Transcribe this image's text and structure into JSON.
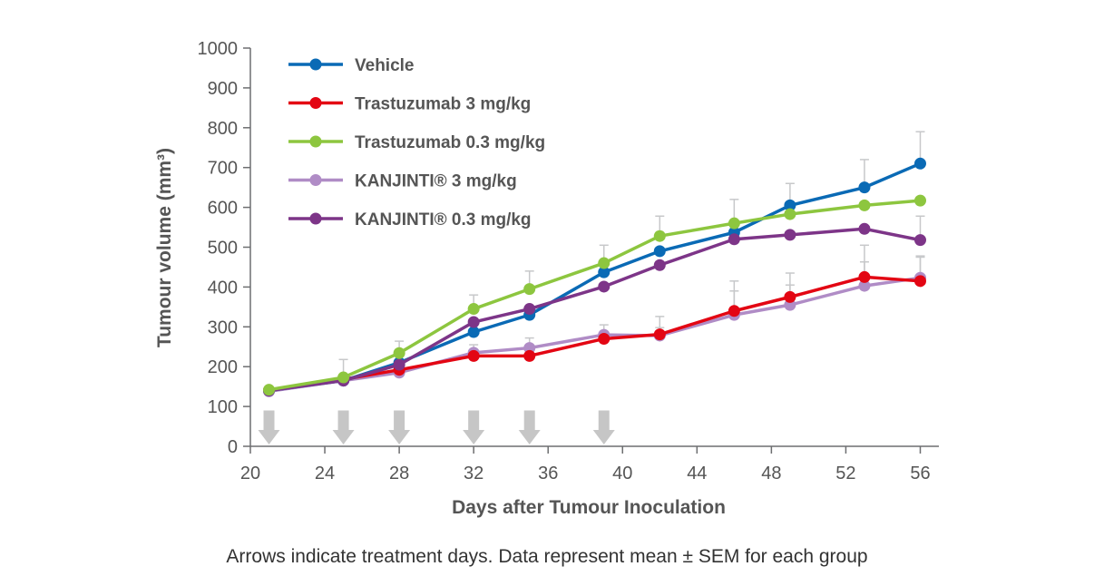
{
  "chart_data": {
    "type": "line",
    "xlabel": "Days after Tumour Inoculation",
    "ylabel": "Tumour volume (mm³)",
    "xlim": [
      20,
      57
    ],
    "ylim": [
      0,
      1000
    ],
    "xticks": [
      "20",
      "24",
      "28",
      "32",
      "36",
      "40",
      "44",
      "48",
      "52",
      "56"
    ],
    "yticks": [
      "0",
      "100",
      "200",
      "300",
      "400",
      "500",
      "600",
      "700",
      "800",
      "900",
      "1000"
    ],
    "caption": "Arrows indicate treatment days. Data represent mean ± SEM for each group",
    "treatment_days": [
      21,
      25,
      28,
      32,
      35,
      39
    ],
    "legend_position": "top-left",
    "series": [
      {
        "name": "KANJINTI® 3 mg/kg",
        "color": "#b08cc6",
        "x": [
          21,
          25,
          28,
          32,
          35,
          39,
          42,
          46,
          49,
          53,
          56
        ],
        "y": [
          138,
          165,
          185,
          235,
          247,
          280,
          278,
          330,
          355,
          403,
          423
        ],
        "err": [
          0,
          0,
          0,
          20,
          25,
          25,
          20,
          60,
          50,
          60,
          55
        ]
      },
      {
        "name": "Trastuzumab 3 mg/kg",
        "color": "#e30613",
        "x": [
          21,
          25,
          28,
          32,
          35,
          39,
          42,
          46,
          49,
          53,
          56
        ],
        "y": [
          141,
          168,
          192,
          227,
          227,
          270,
          281,
          340,
          375,
          425,
          415
        ],
        "err": [
          0,
          0,
          0,
          0,
          0,
          0,
          45,
          75,
          60,
          80,
          60
        ]
      },
      {
        "name": "Vehicle",
        "color": "#0a6ab5",
        "x": [
          21,
          25,
          28,
          32,
          35,
          39,
          42,
          46,
          49,
          53,
          56
        ],
        "y": [
          140,
          165,
          210,
          287,
          330,
          437,
          490,
          537,
          605,
          650,
          710
        ],
        "err": [
          0,
          0,
          0,
          0,
          0,
          0,
          0,
          0,
          55,
          70,
          80
        ]
      },
      {
        "name": "KANJINTI® 0.3 mg/kg",
        "color": "#7d3588",
        "x": [
          21,
          25,
          28,
          32,
          35,
          39,
          42,
          46,
          49,
          53,
          56
        ],
        "y": [
          140,
          165,
          205,
          312,
          345,
          401,
          455,
          520,
          531,
          546,
          518
        ],
        "err": [
          0,
          0,
          0,
          0,
          0,
          0,
          0,
          0,
          0,
          0,
          60
        ]
      },
      {
        "name": "Trastuzumab 0.3 mg/kg",
        "color": "#8dc63f",
        "x": [
          21,
          25,
          28,
          32,
          35,
          39,
          42,
          46,
          49,
          53,
          56
        ],
        "y": [
          142,
          173,
          234,
          345,
          395,
          460,
          528,
          560,
          583,
          605,
          617
        ],
        "err": [
          0,
          45,
          30,
          35,
          45,
          45,
          50,
          60,
          0,
          0,
          0
        ]
      }
    ],
    "legend_order": [
      "Vehicle",
      "Trastuzumab 3 mg/kg",
      "Trastuzumab 0.3 mg/kg",
      "KANJINTI® 3 mg/kg",
      "KANJINTI® 0.3 mg/kg"
    ],
    "colors": {
      "axis": "#6d6e70",
      "errorbar": "#c7c8ca",
      "arrow": "#c6c6c6",
      "text": "#555555"
    }
  }
}
